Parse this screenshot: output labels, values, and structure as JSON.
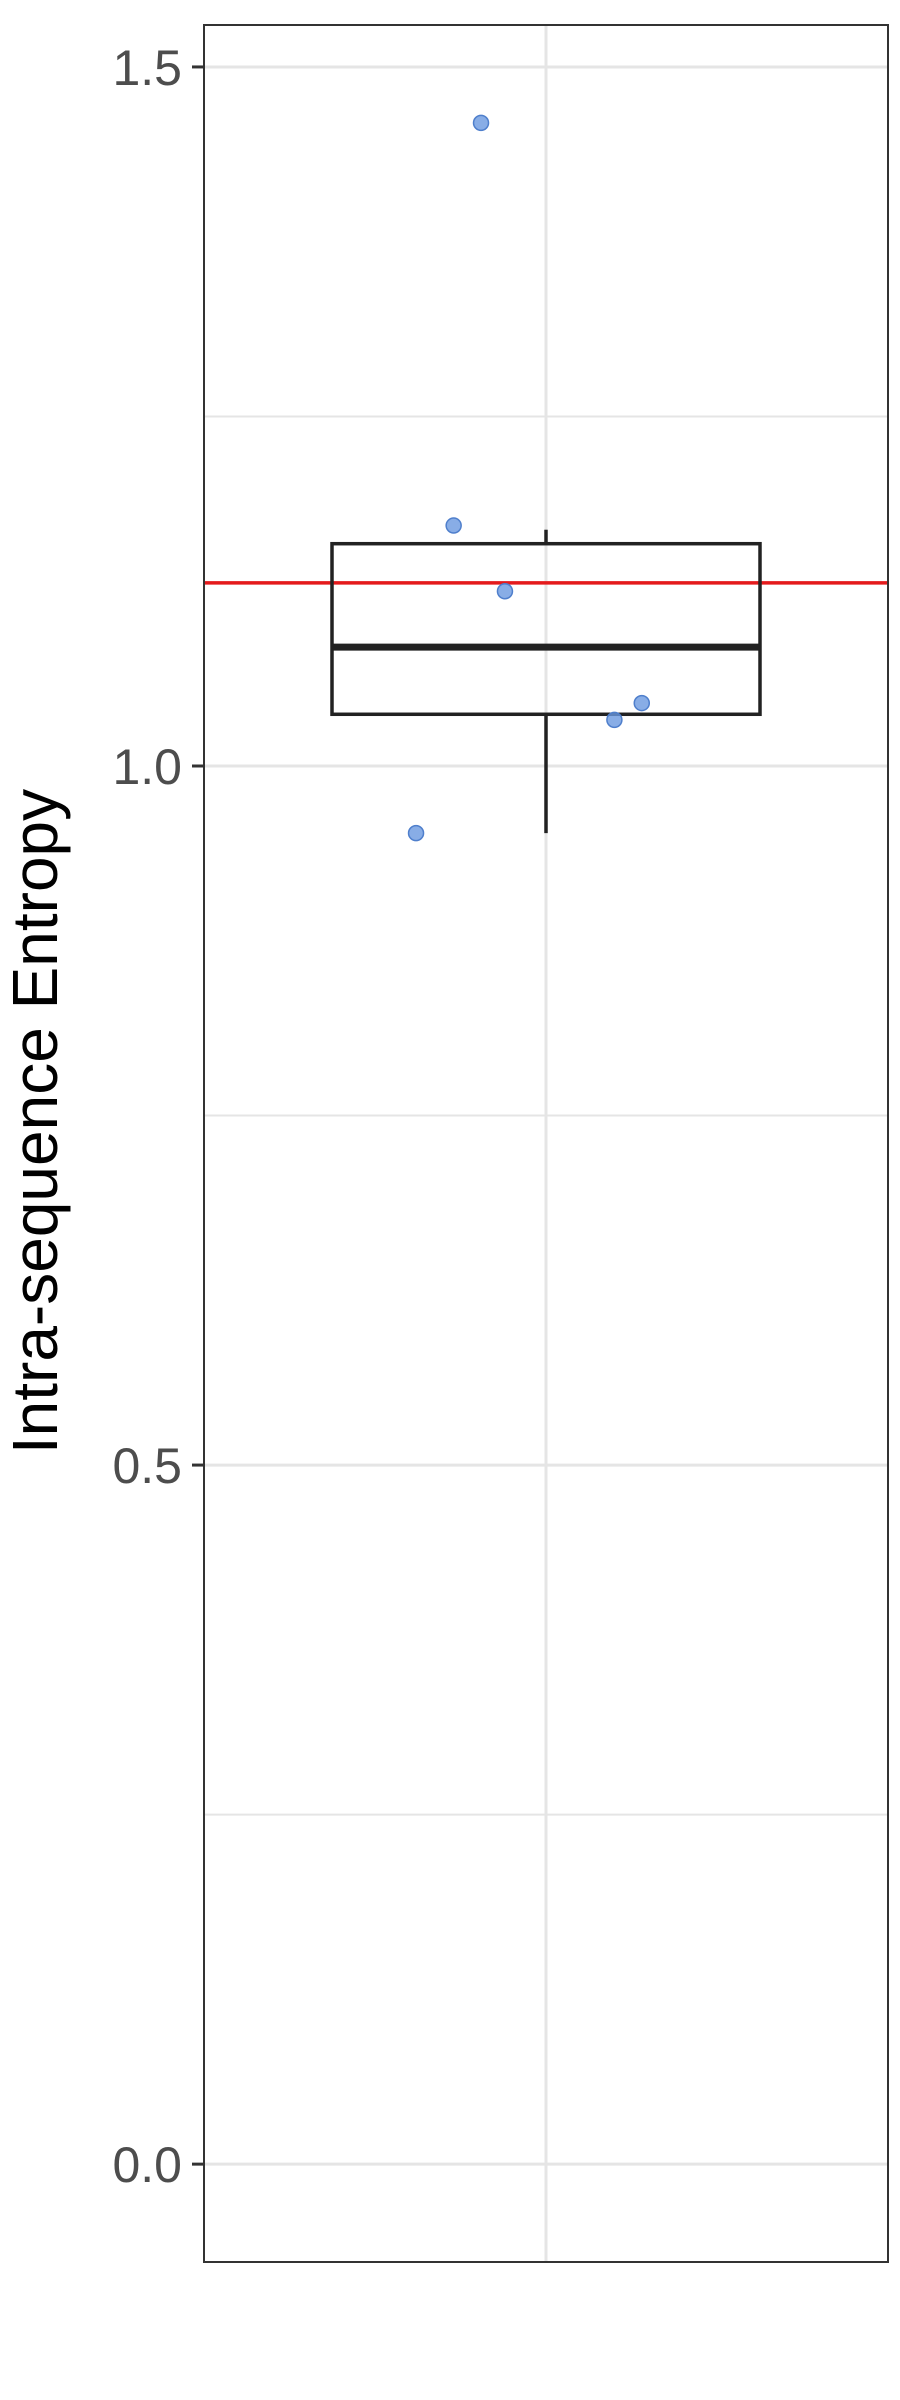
{
  "chart_data": {
    "type": "box",
    "title": "",
    "xlabel": "",
    "ylabel": "Intra-sequence Entropy",
    "yticks": [
      "0.0",
      "0.5",
      "1.0",
      "1.5"
    ],
    "ylim": [
      -0.07,
      1.53
    ],
    "grid": true,
    "box": {
      "q1": 1.037,
      "median": 1.085,
      "q3": 1.159,
      "whisker_low": 0.952,
      "whisker_high": 1.169
    },
    "points": [
      {
        "x_offset": -0.19,
        "y": 0.952
      },
      {
        "x_offset": -0.135,
        "y": 1.172
      },
      {
        "x_offset": -0.095,
        "y": 1.46
      },
      {
        "x_offset": -0.06,
        "y": 1.125
      },
      {
        "x_offset": 0.1,
        "y": 1.033
      },
      {
        "x_offset": 0.14,
        "y": 1.045
      }
    ],
    "reference_line": {
      "y": 1.131,
      "color": "#e41a1c"
    },
    "colors": {
      "points": "#6a98e0",
      "box": "#222222",
      "grid": "#e5e5e5"
    }
  }
}
